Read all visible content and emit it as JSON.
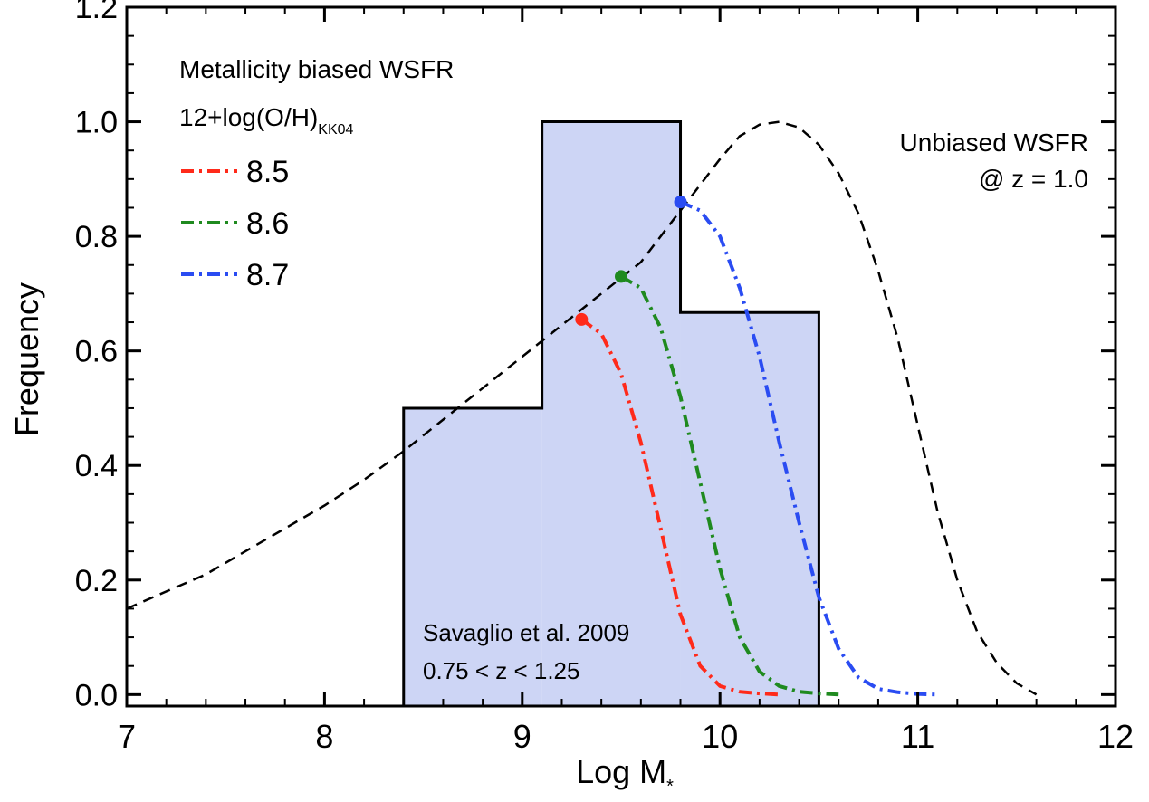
{
  "chart_data": {
    "type": "line",
    "xlabel": "Log M",
    "xlabel_subscript": "*",
    "ylabel": "Frequency",
    "xlim": [
      7,
      12
    ],
    "ylim": [
      -0.02,
      1.2
    ],
    "x_ticks": [
      7,
      8,
      9,
      10,
      11,
      12
    ],
    "y_ticks": [
      0.0,
      0.2,
      0.4,
      0.6,
      0.8,
      1.0,
      1.2
    ],
    "x_tick_labels": [
      "7",
      "8",
      "9",
      "10",
      "11",
      "12"
    ],
    "y_tick_labels": [
      "0.0",
      "0.2",
      "0.4",
      "0.6",
      "0.8",
      "1.0",
      "1.2"
    ],
    "grid": false,
    "histogram": {
      "fill_color": "#cdd5f5",
      "edge_color": "#000000",
      "bins": [
        {
          "x0": 8.4,
          "x1": 9.1,
          "value": 0.5
        },
        {
          "x0": 9.1,
          "x1": 9.8,
          "value": 1.0
        },
        {
          "x0": 9.8,
          "x1": 10.5,
          "value": 0.667
        }
      ]
    },
    "unbiased_curve": {
      "color": "#000000",
      "dash": "dashed",
      "x": [
        7.0,
        7.2,
        7.4,
        7.6,
        7.8,
        8.0,
        8.2,
        8.4,
        8.6,
        8.8,
        9.0,
        9.2,
        9.4,
        9.6,
        9.8,
        10.0,
        10.1,
        10.2,
        10.3,
        10.4,
        10.5,
        10.6,
        10.7,
        10.8,
        10.9,
        11.0,
        11.1,
        11.2,
        11.3,
        11.4,
        11.5,
        11.6
      ],
      "y": [
        0.15,
        0.18,
        0.21,
        0.25,
        0.29,
        0.33,
        0.375,
        0.425,
        0.48,
        0.535,
        0.59,
        0.645,
        0.7,
        0.755,
        0.845,
        0.935,
        0.975,
        0.995,
        1.0,
        0.99,
        0.96,
        0.91,
        0.84,
        0.74,
        0.62,
        0.47,
        0.32,
        0.2,
        0.11,
        0.055,
        0.02,
        0.0
      ]
    },
    "series": [
      {
        "name": "8.5",
        "color": "#ff2a1a",
        "start_marker": [
          9.3,
          0.655
        ],
        "x": [
          9.3,
          9.4,
          9.5,
          9.6,
          9.7,
          9.8,
          9.9,
          10.0,
          10.1,
          10.2,
          10.3
        ],
        "y": [
          0.655,
          0.63,
          0.56,
          0.44,
          0.29,
          0.14,
          0.05,
          0.015,
          0.005,
          0.002,
          0.0
        ]
      },
      {
        "name": "8.6",
        "color": "#1f8a1f",
        "start_marker": [
          9.5,
          0.73
        ],
        "x": [
          9.5,
          9.6,
          9.7,
          9.8,
          9.9,
          10.0,
          10.1,
          10.2,
          10.3,
          10.4,
          10.5,
          10.6
        ],
        "y": [
          0.73,
          0.71,
          0.64,
          0.52,
          0.37,
          0.22,
          0.1,
          0.04,
          0.015,
          0.005,
          0.002,
          0.0
        ]
      },
      {
        "name": "8.7",
        "color": "#2a4cf2",
        "start_marker": [
          9.8,
          0.86
        ],
        "x": [
          9.8,
          9.9,
          10.0,
          10.1,
          10.2,
          10.3,
          10.4,
          10.5,
          10.6,
          10.7,
          10.8,
          10.9,
          11.0,
          11.1
        ],
        "y": [
          0.86,
          0.845,
          0.8,
          0.71,
          0.59,
          0.44,
          0.3,
          0.17,
          0.08,
          0.03,
          0.01,
          0.004,
          0.001,
          0.0
        ]
      }
    ],
    "legend": {
      "placement": "top-left",
      "title": "Metallicity biased WSFR",
      "subtitle_main": "12+log(O/H)",
      "subtitle_sub": "KK04",
      "entries": [
        "8.5",
        "8.6",
        "8.7"
      ]
    },
    "annotations": {
      "unbiased_line1": "Unbiased WSFR",
      "unbiased_line2": "@ z = 1.0",
      "reference_line1": "Savaglio et al. 2009",
      "reference_line2": "0.75 < z < 1.25"
    }
  }
}
